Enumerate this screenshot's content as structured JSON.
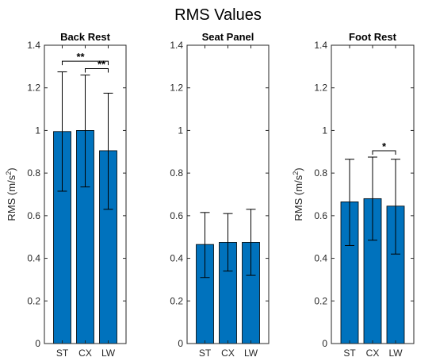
{
  "figure_title": "RMS Values",
  "colors": {
    "bar": "#0072BD",
    "axis": "#262626",
    "err": "#000000"
  },
  "chart_data": [
    {
      "type": "bar",
      "title": "Back Rest",
      "ylabel_main": "RMS (m/s",
      "ylabel_sup": "2",
      "ylabel_end": ")",
      "categories": [
        "ST",
        "CX",
        "LW"
      ],
      "values": [
        0.995,
        1.0,
        0.905
      ],
      "error_low": [
        0.715,
        0.735,
        0.63
      ],
      "error_high": [
        1.275,
        1.26,
        1.175
      ],
      "ylim": [
        0,
        1.4
      ],
      "yticks": [
        "0",
        "0.2",
        "0.4",
        "0.6",
        "0.8",
        "1",
        "1.2",
        "1.4"
      ],
      "significance": [
        {
          "pair": [
            0,
            2
          ],
          "label": "**",
          "level": 1.325
        },
        {
          "pair": [
            1,
            2
          ],
          "label": "**",
          "level": 1.29
        }
      ]
    },
    {
      "type": "bar",
      "title": "Seat Panel",
      "categories": [
        "ST",
        "CX",
        "LW"
      ],
      "values": [
        0.465,
        0.475,
        0.475
      ],
      "error_low": [
        0.31,
        0.34,
        0.32
      ],
      "error_high": [
        0.615,
        0.61,
        0.63
      ],
      "ylim": [
        0,
        1.4
      ],
      "yticks": [
        "0",
        "0.2",
        "0.4",
        "0.6",
        "0.8",
        "1",
        "1.2",
        "1.4"
      ],
      "significance": []
    },
    {
      "type": "bar",
      "title": "Foot Rest",
      "ylabel_main": "RMS (m/s",
      "ylabel_sup": "2",
      "ylabel_end": ")",
      "categories": [
        "ST",
        "CX",
        "LW"
      ],
      "values": [
        0.665,
        0.68,
        0.645
      ],
      "error_low": [
        0.46,
        0.485,
        0.42
      ],
      "error_high": [
        0.865,
        0.875,
        0.865
      ],
      "ylim": [
        0,
        1.4
      ],
      "yticks": [
        "0",
        "0.2",
        "0.4",
        "0.6",
        "0.8",
        "1",
        "1.2",
        "1.4"
      ],
      "significance": [
        {
          "pair": [
            1,
            2
          ],
          "label": "*",
          "level": 0.905
        }
      ]
    }
  ]
}
